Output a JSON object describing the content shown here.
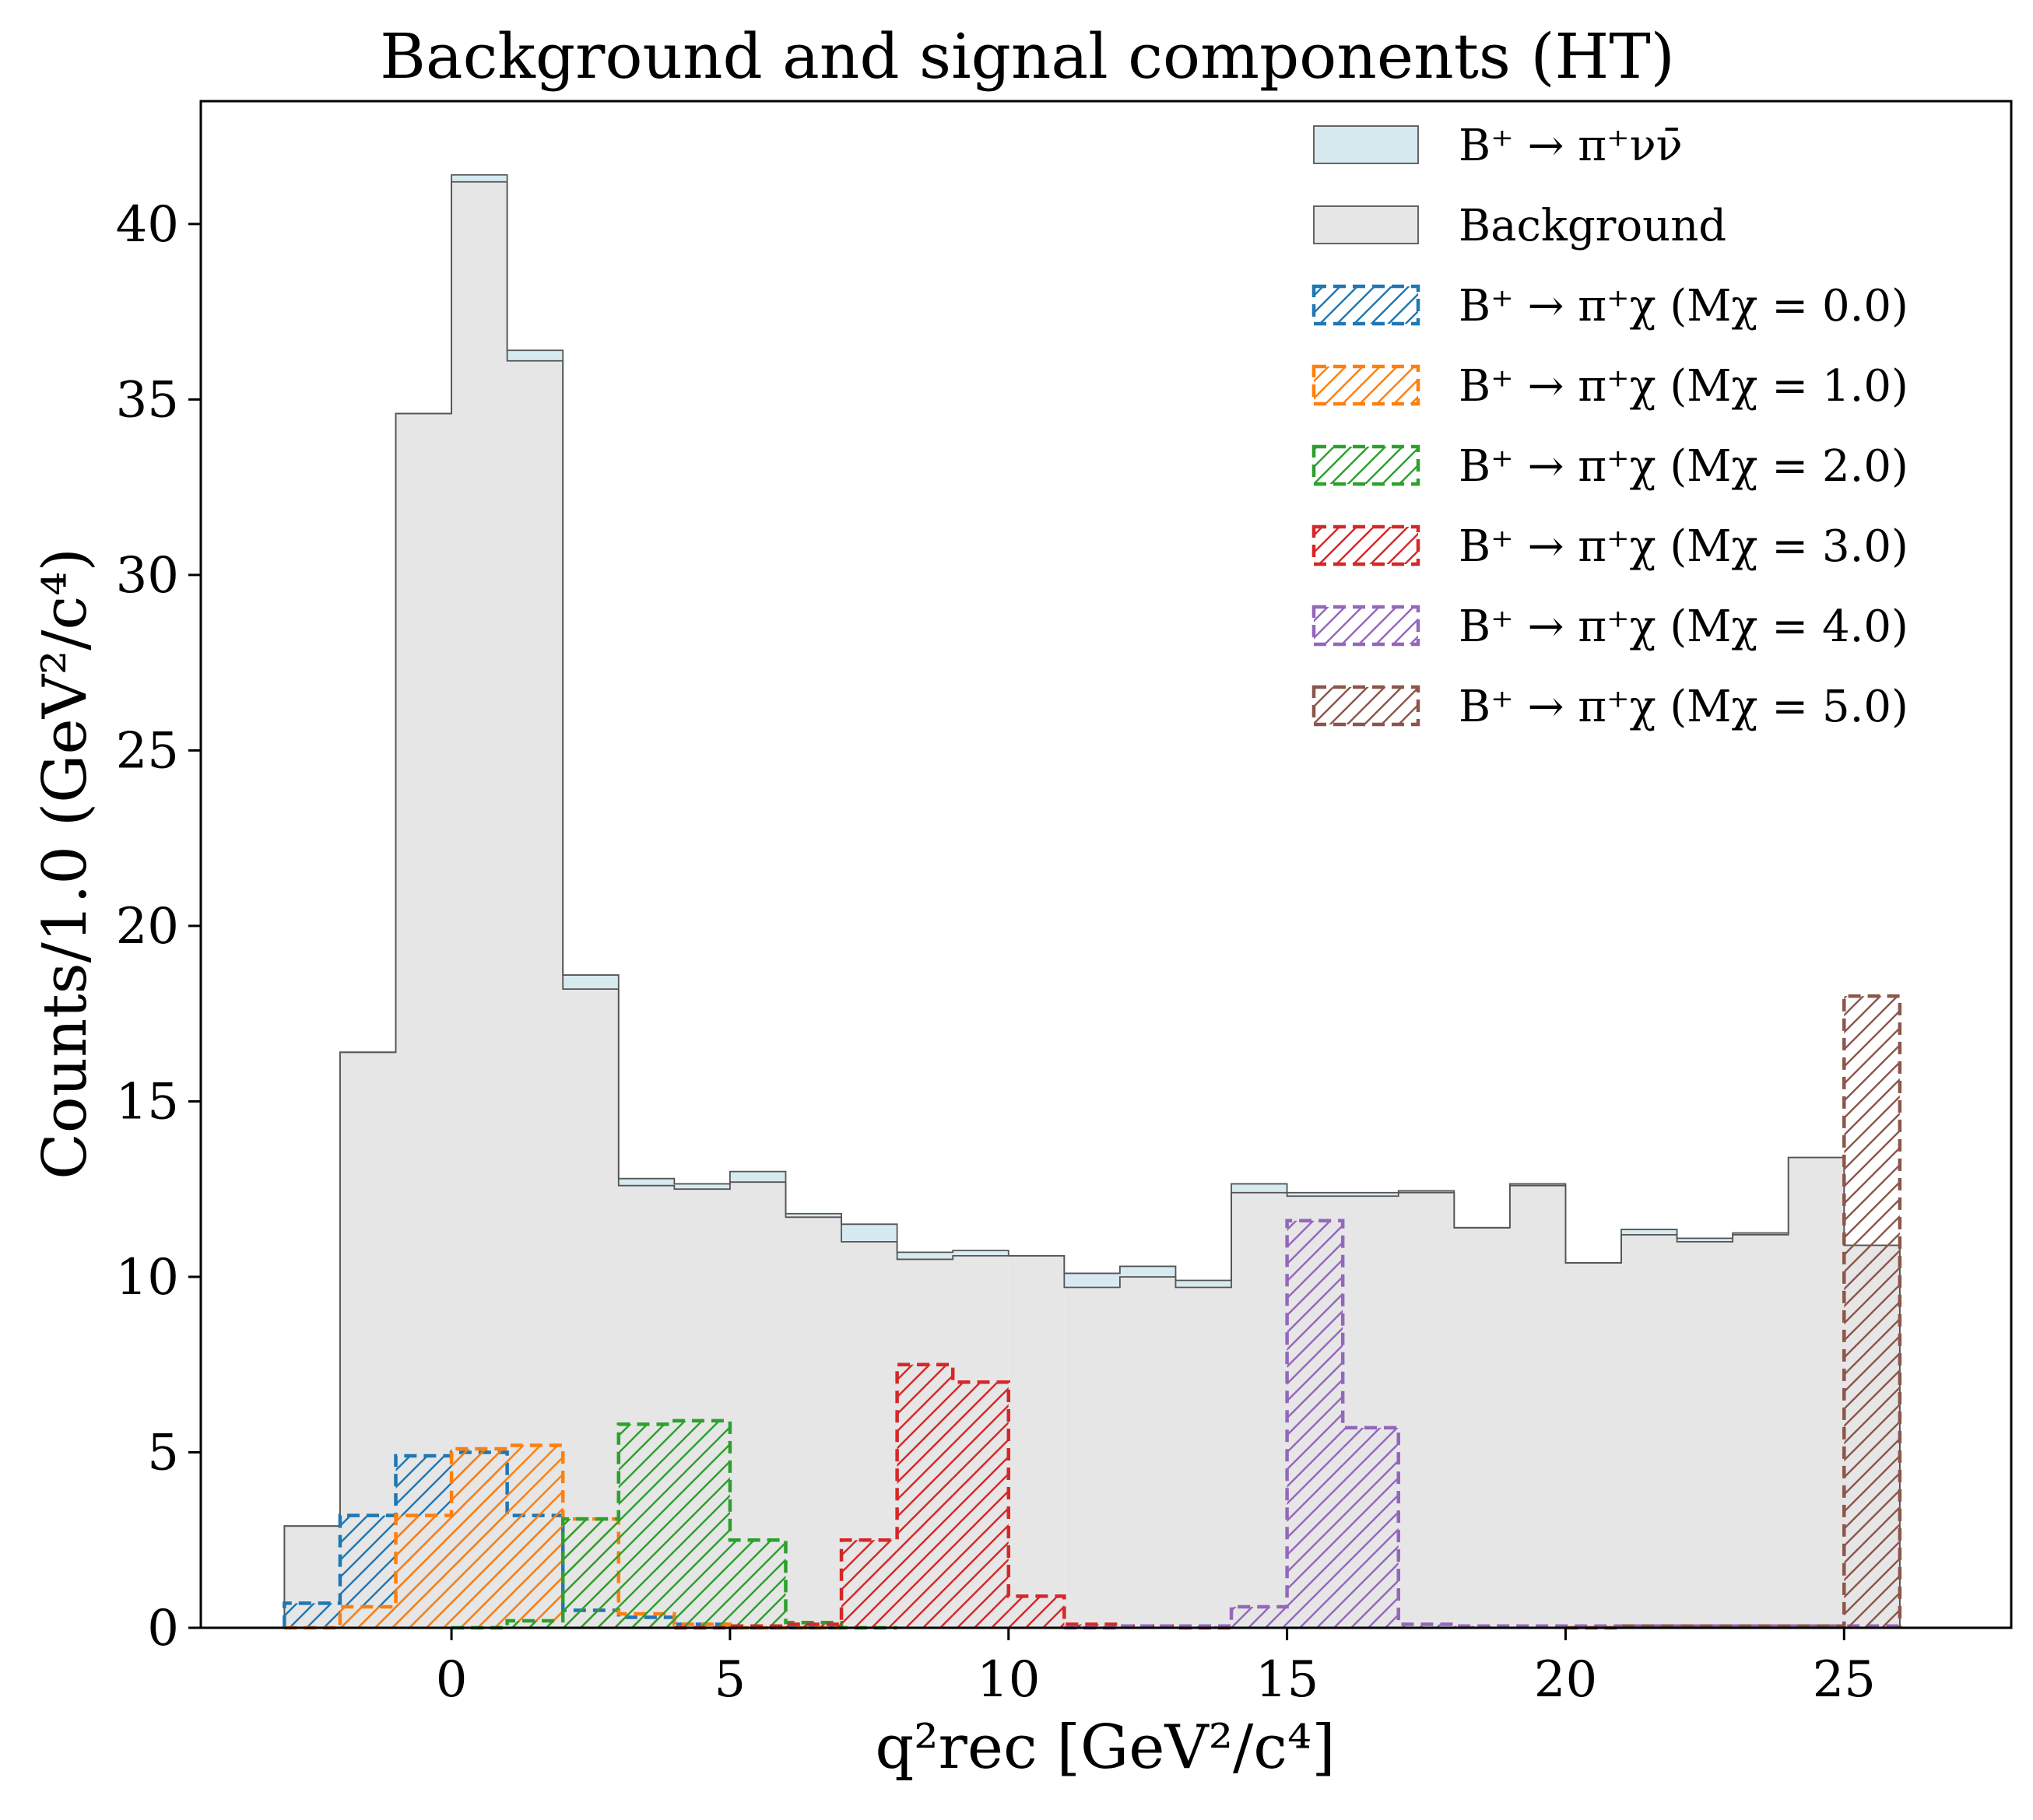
{
  "chart_data": {
    "type": "bar",
    "title": "Background and signal components (HT)",
    "xlabel": "q²rec [GeV²/c⁴]",
    "ylabel": "Counts/1.0 (GeV²/c⁴)",
    "xlim": [
      -4.5,
      28.0
    ],
    "ylim": [
      0,
      43.5
    ],
    "xticks": [
      0,
      5,
      10,
      15,
      20,
      25
    ],
    "yticks": [
      0,
      5,
      10,
      15,
      20,
      25,
      30,
      35,
      40
    ],
    "bin_edges": [
      -3.0,
      -2.0,
      -1.0,
      0.0,
      1.0,
      2.0,
      3.0,
      4.0,
      5.0,
      6.0,
      7.0,
      8.0,
      9.0,
      10.0,
      11.0,
      12.0,
      13.0,
      14.0,
      15.0,
      16.0,
      17.0,
      18.0,
      19.0,
      20.0,
      21.0,
      22.0,
      23.0,
      24.0,
      25.0,
      26.0
    ],
    "legend_position": "top-right",
    "stacked": [
      {
        "name": "Background",
        "color": "#e6e6e6",
        "values": [
          2.9,
          16.4,
          34.6,
          41.2,
          36.1,
          18.2,
          12.6,
          12.5,
          12.7,
          11.7,
          11.0,
          10.5,
          10.6,
          10.6,
          9.7,
          10.0,
          9.7,
          12.4,
          12.3,
          12.3,
          12.4,
          11.4,
          12.6,
          10.4,
          11.2,
          11.0,
          11.2,
          13.4,
          10.9
        ]
      },
      {
        "name": "B⁺ → π⁺νν̄",
        "color": "#d6eaf0",
        "values": [
          0.0,
          0.0,
          0.0,
          0.2,
          0.3,
          0.4,
          0.2,
          0.15,
          0.3,
          0.1,
          0.5,
          0.2,
          0.15,
          0.0,
          0.4,
          0.3,
          0.2,
          0.25,
          0.1,
          0.1,
          0.05,
          0.0,
          0.05,
          0.0,
          0.15,
          0.1,
          0.05,
          0.0,
          0.0
        ]
      }
    ],
    "series": [
      {
        "name": "B⁺ → π⁺χ (Mχ = 0.0)",
        "color": "#1f77b4",
        "start": -3.0,
        "values": [
          0.7,
          3.2,
          4.9,
          5.0,
          3.2,
          0.5,
          0.3,
          0.1,
          0.0,
          0.0
        ]
      },
      {
        "name": "B⁺ → π⁺χ (Mχ = 1.0)",
        "color": "#ff7f0e",
        "start": -3.0,
        "values": [
          0.0,
          0.6,
          3.2,
          5.1,
          5.2,
          3.1,
          0.4,
          0.1,
          0.0,
          0.0
        ]
      },
      {
        "name": "B⁺ → π⁺χ (Mχ = 2.0)",
        "color": "#2ca02c",
        "start": 0.0,
        "values": [
          0.0,
          0.2,
          3.1,
          5.8,
          5.9,
          2.5,
          0.15,
          0.0
        ]
      },
      {
        "name": "B⁺ → π⁺χ (Mχ = 3.0)",
        "color": "#d62728",
        "start": 4.0,
        "values": [
          0.0,
          0.05,
          0.1,
          2.5,
          7.5,
          7.0,
          0.9,
          0.1,
          0.05,
          0.0
        ]
      },
      {
        "name": "B⁺ → π⁺χ (Mχ = 4.0)",
        "color": "#9467bd",
        "start": 11.0,
        "values": [
          0.0,
          0.05,
          0.05,
          0.6,
          11.6,
          5.7,
          0.1,
          0.05,
          0.05,
          0.05,
          0.05,
          0.05,
          0.05,
          0.05,
          0.05
        ]
      },
      {
        "name": "B⁺ → π⁺χ (Mχ = 5.0)",
        "color": "#8c564b",
        "start": 20.0,
        "values": [
          0.0,
          0.05,
          0.05,
          0.05,
          0.05,
          18.0
        ]
      }
    ]
  }
}
